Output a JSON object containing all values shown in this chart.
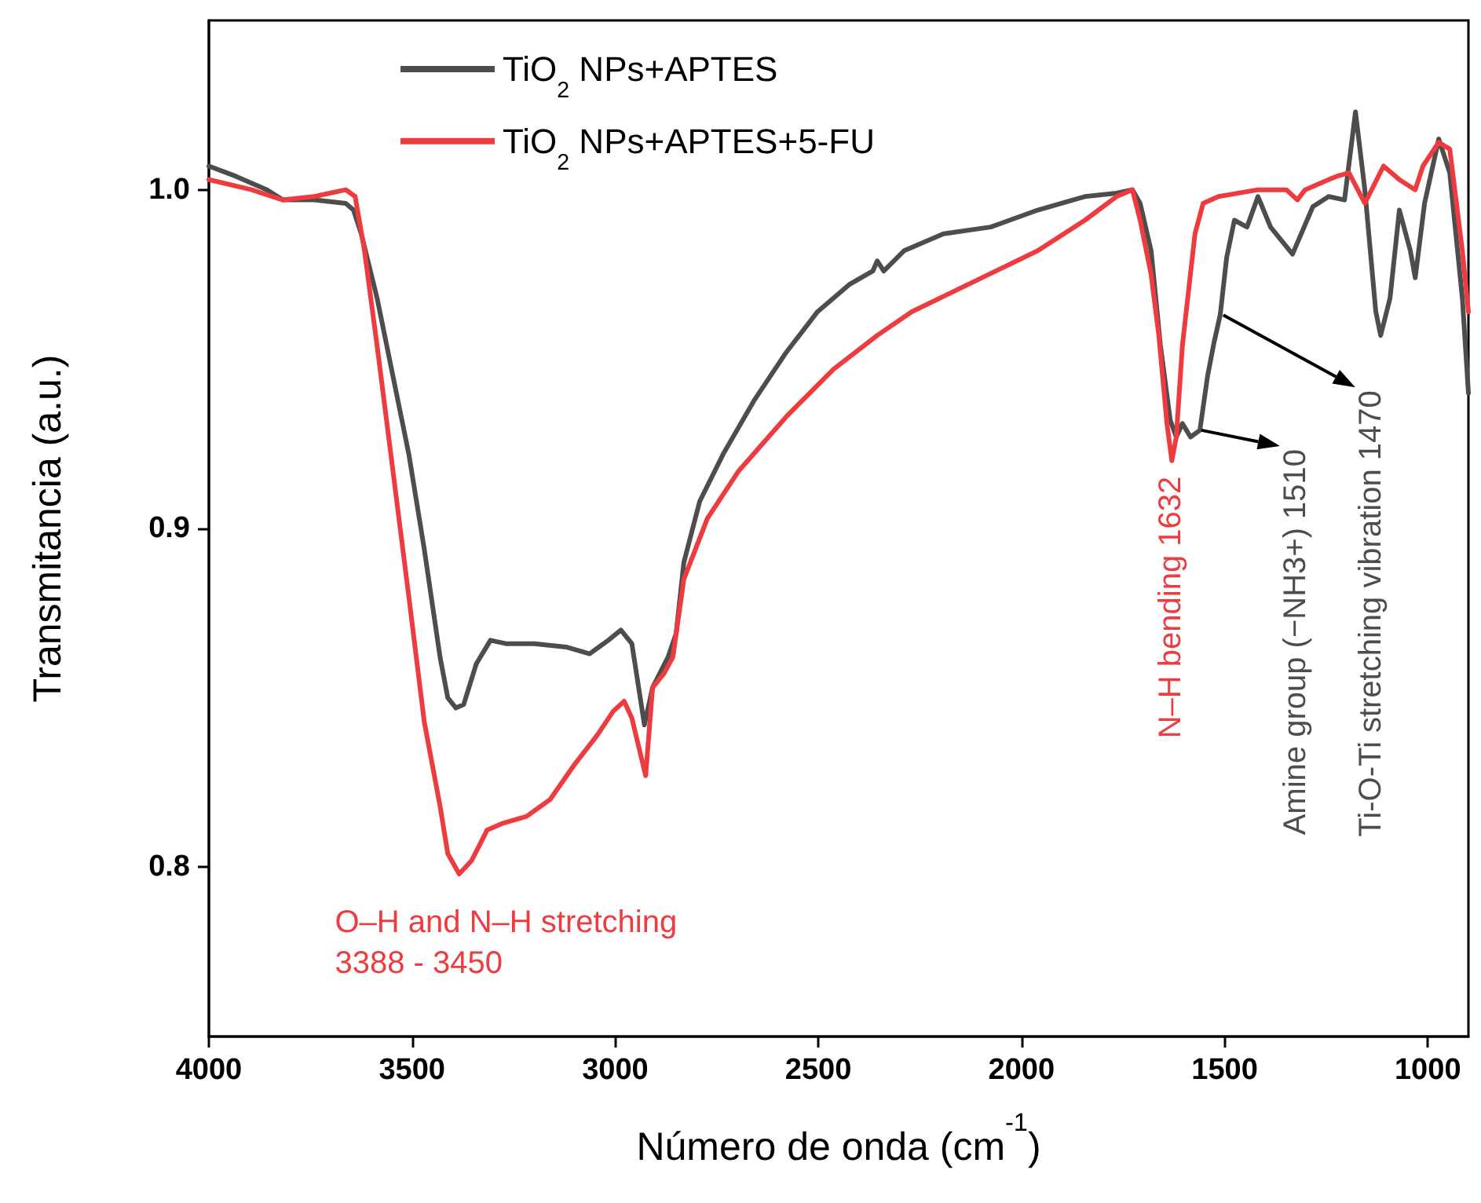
{
  "chart_data": {
    "type": "line",
    "xlabel": "Número de onda (cm$^{-1}$)",
    "ylabel": "Transmitancia (a.u.)",
    "xlim": [
      4000,
      900
    ],
    "xticks": [
      4000,
      3500,
      3000,
      2500,
      2000,
      1500,
      1000
    ],
    "ylim": [
      0.75,
      1.05
    ],
    "yticks": [
      0.8,
      0.9,
      {
        "value": 1,
        "label": "1.0"
      }
    ],
    "grid": false,
    "legend": "top left",
    "marker": "none",
    "line_style": "solid",
    "series": [
      {
        "name": "TiO$_{2}$ NPs+APTES",
        "color": "#4d4d4d",
        "x": [
          4000,
          3934,
          3857,
          3818,
          3741,
          3663,
          3644,
          3625,
          3586,
          3547,
          3508,
          3470,
          3431,
          3412,
          3392,
          3373,
          3342,
          3307,
          3269,
          3199,
          3121,
          3063,
          3017,
          2986,
          2959,
          2928,
          2908,
          2870,
          2850,
          2831,
          2792,
          2734,
          2657,
          2579,
          2502,
          2424,
          2366,
          2355,
          2339,
          2289,
          2192,
          2076,
          1960,
          1844,
          1766,
          1727,
          1708,
          1681,
          1658,
          1634,
          1619,
          1604,
          1584,
          1561,
          1542,
          1526,
          1511,
          1495,
          1476,
          1445,
          1418,
          1387,
          1333,
          1283,
          1244,
          1205,
          1178,
          1155,
          1128,
          1116,
          1093,
          1070,
          1043,
          1031,
          1008,
          973,
          946,
          915,
          900
        ],
        "values": [
          1.007,
          1.004,
          1.0,
          0.997,
          0.997,
          0.996,
          0.994,
          0.987,
          0.968,
          0.945,
          0.922,
          0.894,
          0.862,
          0.85,
          0.847,
          0.848,
          0.86,
          0.867,
          0.866,
          0.866,
          0.865,
          0.863,
          0.867,
          0.87,
          0.866,
          0.842,
          0.853,
          0.862,
          0.869,
          0.89,
          0.908,
          0.922,
          0.938,
          0.952,
          0.964,
          0.972,
          0.976,
          0.979,
          0.976,
          0.982,
          0.987,
          0.989,
          0.994,
          0.998,
          0.999,
          1.0,
          0.996,
          0.982,
          0.954,
          0.932,
          0.927,
          0.931,
          0.927,
          0.929,
          0.945,
          0.955,
          0.963,
          0.98,
          0.991,
          0.989,
          0.998,
          0.989,
          0.981,
          0.995,
          0.998,
          0.997,
          1.023,
          1.0,
          0.964,
          0.957,
          0.968,
          0.994,
          0.982,
          0.974,
          0.996,
          1.015,
          1.005,
          0.968,
          0.94
        ]
      },
      {
        "name": "TiO$_{2}$ NPs+APTES+5-FU",
        "color": "#ee3b3f",
        "x": [
          4000,
          3895,
          3818,
          3741,
          3663,
          3640,
          3617,
          3586,
          3547,
          3508,
          3470,
          3431,
          3412,
          3384,
          3353,
          3315,
          3276,
          3218,
          3160,
          3102,
          3044,
          3005,
          2978,
          2959,
          2925,
          2908,
          2881,
          2858,
          2831,
          2773,
          2696,
          2579,
          2463,
          2355,
          2270,
          2115,
          1960,
          1844,
          1766,
          1727,
          1708,
          1681,
          1662,
          1642,
          1630,
          1619,
          1604,
          1573,
          1553,
          1515,
          1418,
          1348,
          1321,
          1302,
          1244,
          1224,
          1194,
          1155,
          1109,
          1070,
          1031,
          1012,
          973,
          946,
          915,
          900
        ],
        "values": [
          1.003,
          1.0,
          0.997,
          0.998,
          1.0,
          0.998,
          0.982,
          0.954,
          0.917,
          0.88,
          0.843,
          0.818,
          0.804,
          0.798,
          0.802,
          0.811,
          0.813,
          0.815,
          0.82,
          0.83,
          0.839,
          0.846,
          0.849,
          0.844,
          0.827,
          0.853,
          0.857,
          0.862,
          0.885,
          0.903,
          0.917,
          0.933,
          0.947,
          0.957,
          0.964,
          0.973,
          0.982,
          0.991,
          0.998,
          1.0,
          0.991,
          0.975,
          0.957,
          0.931,
          0.92,
          0.927,
          0.954,
          0.987,
          0.996,
          0.998,
          1.0,
          1.0,
          0.997,
          1.0,
          1.003,
          1.004,
          1.005,
          0.996,
          1.007,
          1.003,
          1.0,
          1.007,
          1.014,
          1.012,
          0.982,
          0.964
        ]
      }
    ],
    "annotations": [
      {
        "text": "O–H and N–H stretching\n3388 - 3450",
        "x": 3400,
        "y": 0.798
      },
      {
        "text": "N–H bending 1632",
        "x": 1632,
        "y": 0.92
      },
      {
        "text": "Amine group (−NH3+) 1510",
        "x": 1565,
        "y": 0.929
      },
      {
        "text": "Ti-O-Ti stretching vibration 1470",
        "x": 1511,
        "y": 0.963
      }
    ]
  }
}
